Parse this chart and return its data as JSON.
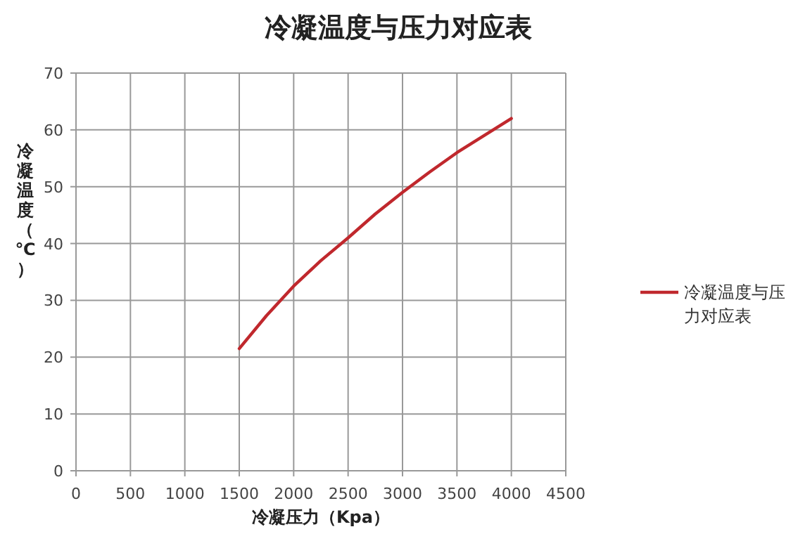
{
  "chart_data": {
    "type": "line",
    "title": "冷凝温度与压力对应表",
    "xlabel": "冷凝压力（Kpa）",
    "ylabel": "冷凝温度（℃）",
    "xlim": [
      0,
      4500
    ],
    "ylim": [
      0,
      70
    ],
    "xticks": [
      0,
      500,
      1000,
      1500,
      2000,
      2500,
      3000,
      3500,
      4000,
      4500
    ],
    "yticks": [
      0,
      10,
      20,
      30,
      40,
      50,
      60,
      70
    ],
    "grid": true,
    "legend": "right",
    "series": [
      {
        "name": "冷凝温度与压力对应表",
        "color": "#c0282d",
        "x": [
          1500,
          1750,
          2000,
          2250,
          2500,
          2750,
          3000,
          3250,
          3500,
          3750,
          4000
        ],
        "values": [
          21.5,
          27.3,
          32.5,
          37,
          41,
          45.2,
          49,
          52.6,
          56,
          59,
          62
        ]
      }
    ]
  }
}
